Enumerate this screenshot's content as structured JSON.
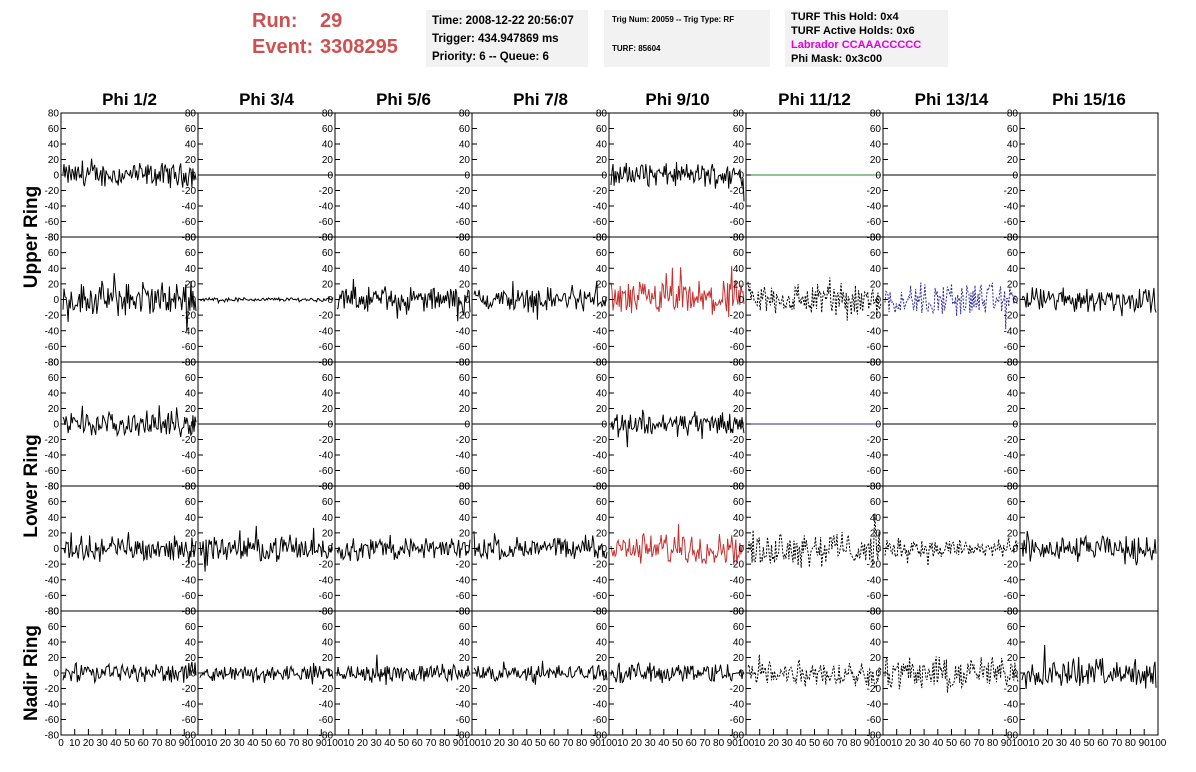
{
  "run_label": "Run:",
  "run_value": "29",
  "event_label": "Event:",
  "event_value": "3308295",
  "info1": {
    "line1": "Time: 2008-12-22 20:56:07",
    "line2": "Trigger: 434.947869 ms",
    "line3": "Priority: 6 -- Queue: 6"
  },
  "info2": {
    "line1": "Trig Num: 20059 -- Trig Type: RF",
    "line2": "TURF: 85604"
  },
  "info3": {
    "line1": "TURF This Hold: 0x4",
    "line2": "TURF Active Holds: 0x6",
    "line3": "Labrador CCAAACCCCC",
    "line4": "Phi Mask: 0x3c00"
  },
  "chart_data": {
    "type": "line",
    "columns": [
      "Phi 1/2",
      "Phi 3/4",
      "Phi 5/6",
      "Phi 7/8",
      "Phi 9/10",
      "Phi 11/12",
      "Phi 13/14",
      "Phi 15/16"
    ],
    "ring_labels": [
      "Upper Ring",
      "Lower Ring",
      "Nadir Ring"
    ],
    "ylim": [
      -80,
      80
    ],
    "xlim": [
      0,
      100
    ],
    "y_ticks": [
      -80,
      -60,
      -40,
      -20,
      0,
      20,
      40,
      60,
      80
    ],
    "y_tick_labels": [
      "-80",
      "-60",
      "-40",
      "-20",
      "0",
      "20",
      "40",
      "60",
      "80"
    ],
    "x_ticks": [
      0,
      10,
      20,
      30,
      40,
      50,
      60,
      70,
      80,
      90,
      100
    ],
    "x_tick_labels_first": [
      "0",
      "10",
      "20",
      "30",
      "40",
      "50",
      "60",
      "70",
      "80",
      "90",
      "100"
    ],
    "x_tick_labels_other": [
      "10",
      "20",
      "30",
      "40",
      "50",
      "60",
      "70",
      "80",
      "90",
      "100"
    ],
    "panels": [
      {
        "amp": [
          12,
          0,
          0,
          0,
          12,
          0,
          0,
          0
        ],
        "color": [
          "#000000",
          "#000000",
          "#000000",
          "#000000",
          "#000000",
          "#2a8a2a",
          "#000000",
          "#000000"
        ],
        "dash": [
          false,
          false,
          false,
          false,
          false,
          false,
          false,
          false
        ]
      },
      {
        "amp": [
          17,
          2,
          12,
          12,
          18,
          17,
          17,
          12
        ],
        "color": [
          "#000000",
          "#000000",
          "#000000",
          "#000000",
          "#c83030",
          "#000000",
          "#2a2aa0",
          "#000000"
        ],
        "dash": [
          false,
          false,
          false,
          false,
          false,
          true,
          true,
          false
        ]
      },
      {
        "amp": [
          12,
          0,
          0,
          0,
          12,
          0,
          0,
          0
        ],
        "color": [
          "#000000",
          "#000000",
          "#000000",
          "#000000",
          "#000000",
          "#2a2aa0",
          "#000000",
          "#000000"
        ],
        "dash": [
          false,
          false,
          false,
          false,
          false,
          false,
          false,
          false
        ]
      },
      {
        "amp": [
          12,
          12,
          11,
          11,
          15,
          17,
          10,
          12
        ],
        "color": [
          "#000000",
          "#000000",
          "#000000",
          "#000000",
          "#c83030",
          "#000000",
          "#000000",
          "#000000"
        ],
        "dash": [
          false,
          false,
          false,
          false,
          false,
          true,
          true,
          false
        ]
      },
      {
        "amp": [
          10,
          7,
          9,
          8,
          10,
          13,
          17,
          14
        ],
        "color": [
          "#000000",
          "#000000",
          "#000000",
          "#000000",
          "#000000",
          "#000000",
          "#000000",
          "#000000"
        ],
        "dash": [
          false,
          false,
          false,
          false,
          false,
          true,
          true,
          false
        ]
      }
    ]
  }
}
